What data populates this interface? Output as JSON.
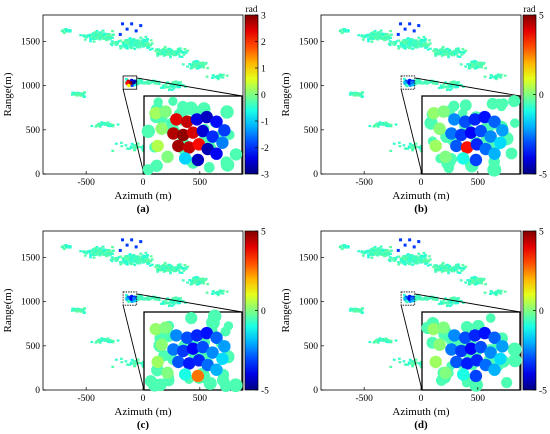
{
  "chart_data": [
    {
      "type": "scatter",
      "panel_label": "(a)",
      "xlabel": "Azimuth (m)",
      "ylabel": "Range(m)",
      "x_ticks": [
        -500,
        0,
        500
      ],
      "y_ticks": [
        0,
        500,
        1000,
        1500
      ],
      "colorbar": {
        "label": "rad",
        "min": -3,
        "max": 3,
        "ticks": [
          3,
          2,
          1,
          0,
          -1,
          -2,
          -3
        ]
      },
      "zoom_points": [
        {
          "x": -130,
          "y": 1050,
          "v": 2.6
        },
        {
          "x": -112,
          "y": 1040,
          "v": 2.4
        },
        {
          "x": -118,
          "y": 1018,
          "v": 2.8
        },
        {
          "x": -100,
          "y": 1058,
          "v": -2.5
        },
        {
          "x": -86,
          "y": 1024,
          "v": -2.2
        },
        {
          "x": -74,
          "y": 1048,
          "v": -2.6
        },
        {
          "x": -95,
          "y": 1005,
          "v": -1.9
        },
        {
          "x": -68,
          "y": 1012,
          "v": -0.6
        },
        {
          "x": -140,
          "y": 1028,
          "v": 2.2
        },
        {
          "x": -104,
          "y": 1030,
          "v": 2.9
        },
        {
          "x": -80,
          "y": 1035,
          "v": -2.8
        },
        {
          "x": -125,
          "y": 1002,
          "v": 0.8
        }
      ],
      "inset_blobs": [
        {
          "x": 0.12,
          "y": 0.22,
          "v": 0.2
        },
        {
          "x": 0.22,
          "y": 0.2,
          "v": 0.0
        },
        {
          "x": 0.33,
          "y": 0.3,
          "v": 2.4
        },
        {
          "x": 0.44,
          "y": 0.33,
          "v": 2.6
        },
        {
          "x": 0.54,
          "y": 0.3,
          "v": -2.4
        },
        {
          "x": 0.64,
          "y": 0.27,
          "v": -2.6
        },
        {
          "x": 0.74,
          "y": 0.33,
          "v": -2.2
        },
        {
          "x": 0.82,
          "y": 0.44,
          "v": -1.9
        },
        {
          "x": 0.18,
          "y": 0.42,
          "v": 0.1
        },
        {
          "x": 0.3,
          "y": 0.48,
          "v": 2.7
        },
        {
          "x": 0.4,
          "y": 0.5,
          "v": 2.9
        },
        {
          "x": 0.5,
          "y": 0.47,
          "v": 2.5
        },
        {
          "x": 0.6,
          "y": 0.45,
          "v": -2.5
        },
        {
          "x": 0.7,
          "y": 0.52,
          "v": -2.0
        },
        {
          "x": 0.8,
          "y": 0.6,
          "v": -1.5
        },
        {
          "x": 0.35,
          "y": 0.64,
          "v": 2.8
        },
        {
          "x": 0.46,
          "y": 0.66,
          "v": 2.6
        },
        {
          "x": 0.56,
          "y": 0.62,
          "v": 2.2
        },
        {
          "x": 0.65,
          "y": 0.68,
          "v": -2.7
        },
        {
          "x": 0.74,
          "y": 0.74,
          "v": -2.3
        },
        {
          "x": 0.42,
          "y": 0.8,
          "v": -1.0
        },
        {
          "x": 0.55,
          "y": 0.82,
          "v": -2.6
        },
        {
          "x": 0.14,
          "y": 0.64,
          "v": 0.3
        },
        {
          "x": 0.24,
          "y": 0.78,
          "v": 0.0
        }
      ]
    },
    {
      "type": "scatter",
      "panel_label": "(b)",
      "xlabel": "Azimuth (m)",
      "ylabel": "Range(m)",
      "x_ticks": [
        -500,
        0,
        500
      ],
      "y_ticks": [
        0,
        500,
        1000,
        1500
      ],
      "colorbar": {
        "label": "rad",
        "min": -5,
        "max": 5,
        "ticks": [
          5,
          0,
          -5
        ]
      },
      "zoom_points": [
        {
          "x": -130,
          "y": 1050,
          "v": -2.8
        },
        {
          "x": -112,
          "y": 1040,
          "v": -3.2
        },
        {
          "x": -118,
          "y": 1018,
          "v": -2.5
        },
        {
          "x": -100,
          "y": 1058,
          "v": -3.6
        },
        {
          "x": -86,
          "y": 1024,
          "v": -3.0
        },
        {
          "x": -74,
          "y": 1048,
          "v": -3.4
        },
        {
          "x": -95,
          "y": 1005,
          "v": -2.2
        },
        {
          "x": -68,
          "y": 1012,
          "v": -1.8
        },
        {
          "x": -140,
          "y": 1028,
          "v": -2.0
        },
        {
          "x": -104,
          "y": 1030,
          "v": -3.8
        },
        {
          "x": -80,
          "y": 1035,
          "v": -2.6
        },
        {
          "x": -125,
          "y": 1002,
          "v": -0.6
        }
      ],
      "inset_blobs": [
        {
          "x": 0.12,
          "y": 0.22,
          "v": 0.2
        },
        {
          "x": 0.22,
          "y": 0.2,
          "v": 0.0
        },
        {
          "x": 0.33,
          "y": 0.3,
          "v": -2.4
        },
        {
          "x": 0.44,
          "y": 0.33,
          "v": -3.0
        },
        {
          "x": 0.54,
          "y": 0.3,
          "v": -3.4
        },
        {
          "x": 0.64,
          "y": 0.27,
          "v": -3.6
        },
        {
          "x": 0.74,
          "y": 0.33,
          "v": -2.8
        },
        {
          "x": 0.82,
          "y": 0.44,
          "v": -2.2
        },
        {
          "x": 0.18,
          "y": 0.42,
          "v": 0.1
        },
        {
          "x": 0.3,
          "y": 0.48,
          "v": -2.6
        },
        {
          "x": 0.4,
          "y": 0.5,
          "v": -3.2
        },
        {
          "x": 0.5,
          "y": 0.47,
          "v": -3.8
        },
        {
          "x": 0.6,
          "y": 0.45,
          "v": -3.0
        },
        {
          "x": 0.7,
          "y": 0.52,
          "v": -2.4
        },
        {
          "x": 0.8,
          "y": 0.6,
          "v": -1.6
        },
        {
          "x": 0.35,
          "y": 0.64,
          "v": -2.9
        },
        {
          "x": 0.46,
          "y": 0.66,
          "v": 3.6
        },
        {
          "x": 0.56,
          "y": 0.62,
          "v": -3.4
        },
        {
          "x": 0.65,
          "y": 0.68,
          "v": -2.7
        },
        {
          "x": 0.74,
          "y": 0.74,
          "v": -2.0
        },
        {
          "x": 0.42,
          "y": 0.8,
          "v": -1.0
        },
        {
          "x": 0.55,
          "y": 0.82,
          "v": -3.1
        },
        {
          "x": 0.14,
          "y": 0.64,
          "v": 0.3
        },
        {
          "x": 0.24,
          "y": 0.78,
          "v": 0.0
        }
      ]
    },
    {
      "type": "scatter",
      "panel_label": "(c)",
      "xlabel": "Azimuth (m)",
      "ylabel": "Range(m)",
      "x_ticks": [
        -500,
        0,
        500
      ],
      "y_ticks": [
        0,
        500,
        1000,
        1500
      ],
      "colorbar": {
        "label": "",
        "min": -5,
        "max": 5,
        "ticks": [
          5,
          0,
          -5
        ]
      },
      "zoom_points": [
        {
          "x": -130,
          "y": 1050,
          "v": -2.8
        },
        {
          "x": -112,
          "y": 1040,
          "v": -3.2
        },
        {
          "x": -118,
          "y": 1018,
          "v": -2.5
        },
        {
          "x": -100,
          "y": 1058,
          "v": -3.6
        },
        {
          "x": -86,
          "y": 1024,
          "v": -3.0
        },
        {
          "x": -74,
          "y": 1048,
          "v": -3.4
        },
        {
          "x": -95,
          "y": 1005,
          "v": -2.2
        },
        {
          "x": -68,
          "y": 1012,
          "v": -1.8
        },
        {
          "x": -140,
          "y": 1028,
          "v": -2.0
        },
        {
          "x": -104,
          "y": 1030,
          "v": -3.8
        },
        {
          "x": -80,
          "y": 1035,
          "v": -2.6
        },
        {
          "x": -125,
          "y": 1002,
          "v": -0.6
        }
      ],
      "inset_blobs": [
        {
          "x": 0.12,
          "y": 0.22,
          "v": 0.2
        },
        {
          "x": 0.22,
          "y": 0.2,
          "v": 0.0
        },
        {
          "x": 0.33,
          "y": 0.3,
          "v": -2.4
        },
        {
          "x": 0.44,
          "y": 0.33,
          "v": -3.0
        },
        {
          "x": 0.54,
          "y": 0.3,
          "v": -3.4
        },
        {
          "x": 0.64,
          "y": 0.27,
          "v": -3.6
        },
        {
          "x": 0.74,
          "y": 0.33,
          "v": -2.8
        },
        {
          "x": 0.82,
          "y": 0.44,
          "v": -2.2
        },
        {
          "x": 0.18,
          "y": 0.42,
          "v": 0.1
        },
        {
          "x": 0.3,
          "y": 0.48,
          "v": -2.6
        },
        {
          "x": 0.4,
          "y": 0.5,
          "v": -3.2
        },
        {
          "x": 0.5,
          "y": 0.47,
          "v": -3.8
        },
        {
          "x": 0.6,
          "y": 0.45,
          "v": -3.0
        },
        {
          "x": 0.7,
          "y": 0.52,
          "v": -2.4
        },
        {
          "x": 0.8,
          "y": 0.6,
          "v": -1.6
        },
        {
          "x": 0.35,
          "y": 0.64,
          "v": -2.9
        },
        {
          "x": 0.46,
          "y": 0.66,
          "v": -3.5
        },
        {
          "x": 0.56,
          "y": 0.62,
          "v": -3.4
        },
        {
          "x": 0.65,
          "y": 0.68,
          "v": -2.7
        },
        {
          "x": 0.74,
          "y": 0.74,
          "v": -2.0
        },
        {
          "x": 0.42,
          "y": 0.8,
          "v": -1.0
        },
        {
          "x": 0.55,
          "y": 0.82,
          "v": 2.6
        },
        {
          "x": 0.14,
          "y": 0.64,
          "v": 0.3
        },
        {
          "x": 0.24,
          "y": 0.78,
          "v": 0.0
        }
      ]
    },
    {
      "type": "scatter",
      "panel_label": "(d)",
      "xlabel": "Azimuth (m)",
      "ylabel": "Range(m)",
      "x_ticks": [
        -500,
        0,
        500
      ],
      "y_ticks": [
        0,
        500,
        1000,
        1500
      ],
      "colorbar": {
        "label": "",
        "min": -5,
        "max": 5,
        "ticks": [
          5,
          0,
          -5
        ]
      },
      "zoom_points": [
        {
          "x": -130,
          "y": 1050,
          "v": -2.8
        },
        {
          "x": -112,
          "y": 1040,
          "v": -3.2
        },
        {
          "x": -118,
          "y": 1018,
          "v": -2.5
        },
        {
          "x": -100,
          "y": 1058,
          "v": -3.6
        },
        {
          "x": -86,
          "y": 1024,
          "v": -3.0
        },
        {
          "x": -74,
          "y": 1048,
          "v": -3.4
        },
        {
          "x": -95,
          "y": 1005,
          "v": -2.2
        },
        {
          "x": -68,
          "y": 1012,
          "v": -1.8
        },
        {
          "x": -140,
          "y": 1028,
          "v": -2.0
        },
        {
          "x": -104,
          "y": 1030,
          "v": -3.8
        },
        {
          "x": -80,
          "y": 1035,
          "v": -2.6
        },
        {
          "x": -125,
          "y": 1002,
          "v": -0.6
        }
      ],
      "inset_blobs": [
        {
          "x": 0.12,
          "y": 0.22,
          "v": 0.2
        },
        {
          "x": 0.22,
          "y": 0.2,
          "v": 0.0
        },
        {
          "x": 0.33,
          "y": 0.3,
          "v": -2.4
        },
        {
          "x": 0.44,
          "y": 0.33,
          "v": -3.0
        },
        {
          "x": 0.54,
          "y": 0.3,
          "v": -3.4
        },
        {
          "x": 0.64,
          "y": 0.27,
          "v": -3.6
        },
        {
          "x": 0.74,
          "y": 0.33,
          "v": -2.8
        },
        {
          "x": 0.82,
          "y": 0.44,
          "v": -2.2
        },
        {
          "x": 0.18,
          "y": 0.42,
          "v": 0.1
        },
        {
          "x": 0.3,
          "y": 0.48,
          "v": -2.6
        },
        {
          "x": 0.4,
          "y": 0.5,
          "v": -3.2
        },
        {
          "x": 0.5,
          "y": 0.47,
          "v": -3.8
        },
        {
          "x": 0.6,
          "y": 0.45,
          "v": -3.0
        },
        {
          "x": 0.7,
          "y": 0.52,
          "v": -2.4
        },
        {
          "x": 0.8,
          "y": 0.6,
          "v": -1.6
        },
        {
          "x": 0.35,
          "y": 0.64,
          "v": -2.9
        },
        {
          "x": 0.46,
          "y": 0.66,
          "v": -3.5
        },
        {
          "x": 0.56,
          "y": 0.62,
          "v": -3.4
        },
        {
          "x": 0.65,
          "y": 0.68,
          "v": -2.7
        },
        {
          "x": 0.74,
          "y": 0.74,
          "v": -2.0
        },
        {
          "x": 0.42,
          "y": 0.8,
          "v": -1.0
        },
        {
          "x": 0.55,
          "y": 0.82,
          "v": -3.1
        },
        {
          "x": 0.14,
          "y": 0.64,
          "v": 0.3
        },
        {
          "x": 0.24,
          "y": 0.78,
          "v": 0.0
        }
      ]
    }
  ]
}
